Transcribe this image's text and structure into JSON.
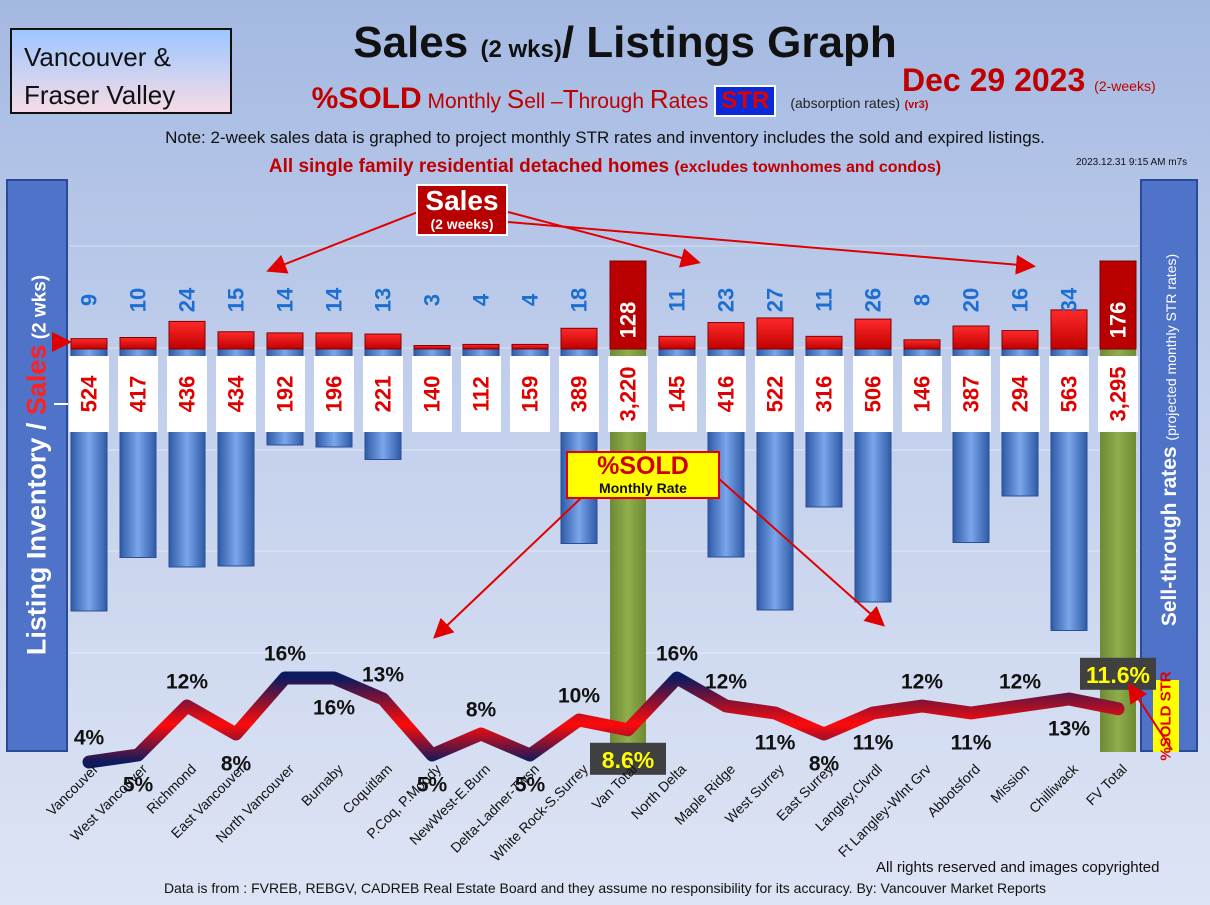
{
  "header": {
    "region_line1": "Vancouver &",
    "region_line2": "Fraser Valley",
    "title_main": "Sales ",
    "title_small": "(2 wks)",
    "title_rest": "/ Listings Graph",
    "subtitle_sold": "%SOLD",
    "subtitle_m": " Monthly ",
    "subtitle_s": "S",
    "subtitle_ell": "ell –",
    "subtitle_t": "T",
    "subtitle_hrough": "hrough ",
    "subtitle_r": "R",
    "subtitle_ates": "ates",
    "subtitle_str": "STR",
    "subtitle_absorb": "(absorption rates)",
    "subtitle_vr": "(vr3)",
    "date": "Dec 29  2023",
    "date_note": "(2-weeks)",
    "note": "Note: 2-week sales data is graphed to project monthly STR rates and inventory includes the sold and expired listings.",
    "subhead": "All single family residential detached homes",
    "subhead_small": "(excludes townhomes and condos)",
    "stamp": "2023.12.31 9:15 AM m7s"
  },
  "left_axis": {
    "part1": "Listing Inventory / ",
    "part2": "Sales",
    "part3": " (2  wks)"
  },
  "right_axis": {
    "part1": "Sell-through rates",
    "part2": "(projected monthly STR rates)",
    "str": "STR",
    "sold": "%SOLD"
  },
  "callouts": {
    "sales_title": "Sales",
    "sales_sub": "(2 weeks)",
    "sold_title": "%SOLD",
    "sold_sub": "Monthly Rate"
  },
  "footer": {
    "rights": "All rights reserved and  images copyrighted",
    "source": "Data is from : FVREB, REBGV, CADREB Real Estate Board and they assume no responsibility for its accuracy. By: Vancouver Market Reports"
  },
  "colors": {
    "sales": "#e00000",
    "listings": "#4a7fd2",
    "total": "#76923c",
    "str_line_high": "#e00000",
    "str_line_low": "#0d1a5e"
  },
  "chart_data": {
    "type": "bar",
    "categories": [
      "Vancouver",
      "West Vancouver",
      "Richmond",
      "East Vancouver",
      "North Vancouver",
      "Burnaby",
      "Coquitlam",
      "P.Coq, P.Moody",
      "NewWest-E.Burn",
      "Delta-Ladner-Twsn",
      "White Rock-S.Surrey",
      "Van Total",
      "North Delta",
      "Maple Ridge",
      "West Surrey",
      "East Surrey",
      "Langley,Clvrdl",
      "Ft Langley-Wlnt Grv",
      "Abbotsford",
      "Mission",
      "Chilliwack",
      "FV Total"
    ],
    "series": [
      {
        "name": "Sales",
        "values": [
          9,
          10,
          24,
          15,
          14,
          14,
          13,
          3,
          4,
          4,
          18,
          128,
          11,
          23,
          27,
          11,
          26,
          8,
          20,
          16,
          34,
          176
        ]
      },
      {
        "name": "Listing Inventory",
        "values": [
          524,
          417,
          436,
          434,
          192,
          196,
          221,
          140,
          112,
          159,
          389,
          3220,
          145,
          416,
          522,
          316,
          506,
          146,
          387,
          294,
          563,
          3295
        ]
      },
      {
        "name": "%SOLD",
        "values": [
          4,
          5,
          12,
          8,
          16,
          16,
          13,
          5,
          8,
          5,
          10,
          8.6,
          16,
          12,
          11,
          8,
          11,
          12,
          11,
          12,
          13,
          11.6
        ]
      }
    ],
    "sold_labels": [
      "4%",
      "5%",
      "12%",
      "8%",
      "16%",
      "16%",
      "13%",
      "5%",
      "8%",
      "5%",
      "10%",
      "8.6%",
      "16%",
      "12%",
      "11%",
      "8%",
      "11%",
      "12%",
      "11%",
      "12%",
      "13%",
      "11.6%"
    ],
    "totals": [
      "Van Total",
      "FV Total"
    ]
  }
}
